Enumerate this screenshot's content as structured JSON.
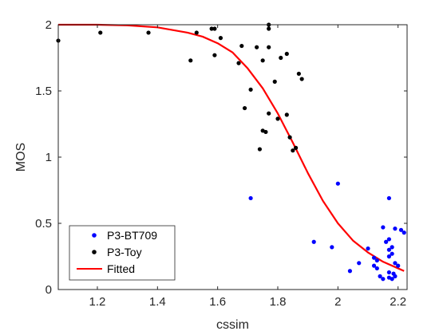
{
  "chart_data": {
    "type": "scatter",
    "title": "",
    "xlabel": "cssim",
    "ylabel": "MOS",
    "xlim": [
      1.07,
      2.23
    ],
    "ylim": [
      0,
      2
    ],
    "xticks": [
      1.2,
      1.4,
      1.6,
      1.8,
      2.0,
      2.2
    ],
    "xtick_labels": [
      "1.2",
      "1.4",
      "1.6",
      "1.8",
      "2",
      "2.2"
    ],
    "yticks": [
      0,
      0.5,
      1,
      1.5,
      2
    ],
    "ytick_labels": [
      "0",
      "0.5",
      "1",
      "1.5",
      "2"
    ],
    "grid": false,
    "legend_position": "bottom-left",
    "series": [
      {
        "name": "P3-BT709",
        "kind": "scatter",
        "color": "#0000ff",
        "points": [
          [
            1.71,
            0.69
          ],
          [
            2.0,
            0.8
          ],
          [
            1.92,
            0.36
          ],
          [
            1.98,
            0.32
          ],
          [
            2.04,
            0.14
          ],
          [
            2.07,
            0.2
          ],
          [
            2.1,
            0.31
          ],
          [
            2.12,
            0.24
          ],
          [
            2.12,
            0.18
          ],
          [
            2.13,
            0.22
          ],
          [
            2.13,
            0.16
          ],
          [
            2.14,
            0.1
          ],
          [
            2.15,
            0.08
          ],
          [
            2.15,
            0.47
          ],
          [
            2.16,
            0.36
          ],
          [
            2.17,
            0.69
          ],
          [
            2.17,
            0.38
          ],
          [
            2.17,
            0.3
          ],
          [
            2.17,
            0.25
          ],
          [
            2.17,
            0.13
          ],
          [
            2.17,
            0.09
          ],
          [
            2.18,
            0.32
          ],
          [
            2.18,
            0.27
          ],
          [
            2.18,
            0.08
          ],
          [
            2.185,
            0.12
          ],
          [
            2.19,
            0.46
          ],
          [
            2.19,
            0.2
          ],
          [
            2.19,
            0.1
          ],
          [
            2.2,
            0.18
          ],
          [
            2.21,
            0.45
          ],
          [
            2.22,
            0.43
          ]
        ]
      },
      {
        "name": "P3-Toy",
        "kind": "scatter",
        "color": "#000000",
        "points": [
          [
            1.07,
            1.88
          ],
          [
            1.21,
            1.94
          ],
          [
            1.37,
            1.94
          ],
          [
            1.51,
            1.73
          ],
          [
            1.53,
            1.94
          ],
          [
            1.58,
            1.97
          ],
          [
            1.59,
            1.97
          ],
          [
            1.59,
            1.77
          ],
          [
            1.61,
            1.9
          ],
          [
            1.67,
            1.71
          ],
          [
            1.68,
            1.84
          ],
          [
            1.69,
            1.37
          ],
          [
            1.71,
            1.51
          ],
          [
            1.73,
            1.83
          ],
          [
            1.74,
            1.06
          ],
          [
            1.75,
            1.2
          ],
          [
            1.75,
            1.73
          ],
          [
            1.76,
            1.19
          ],
          [
            1.77,
            2.0
          ],
          [
            1.77,
            1.97
          ],
          [
            1.77,
            1.33
          ],
          [
            1.77,
            1.83
          ],
          [
            1.79,
            1.57
          ],
          [
            1.8,
            1.29
          ],
          [
            1.81,
            1.75
          ],
          [
            1.83,
            1.32
          ],
          [
            1.83,
            1.78
          ],
          [
            1.84,
            1.15
          ],
          [
            1.85,
            1.05
          ],
          [
            1.86,
            1.07
          ],
          [
            1.87,
            1.63
          ],
          [
            1.88,
            1.59
          ]
        ]
      },
      {
        "name": "Fitted",
        "kind": "line",
        "color": "#ff0000",
        "points": [
          [
            1.07,
            2.0
          ],
          [
            1.2,
            2.0
          ],
          [
            1.3,
            1.995
          ],
          [
            1.4,
            1.98
          ],
          [
            1.5,
            1.94
          ],
          [
            1.55,
            1.91
          ],
          [
            1.6,
            1.86
          ],
          [
            1.65,
            1.79
          ],
          [
            1.7,
            1.67
          ],
          [
            1.75,
            1.52
          ],
          [
            1.8,
            1.33
          ],
          [
            1.85,
            1.11
          ],
          [
            1.9,
            0.88
          ],
          [
            1.95,
            0.67
          ],
          [
            2.0,
            0.5
          ],
          [
            2.05,
            0.37
          ],
          [
            2.1,
            0.28
          ],
          [
            2.15,
            0.21
          ],
          [
            2.2,
            0.16
          ],
          [
            2.22,
            0.14
          ]
        ]
      }
    ]
  }
}
